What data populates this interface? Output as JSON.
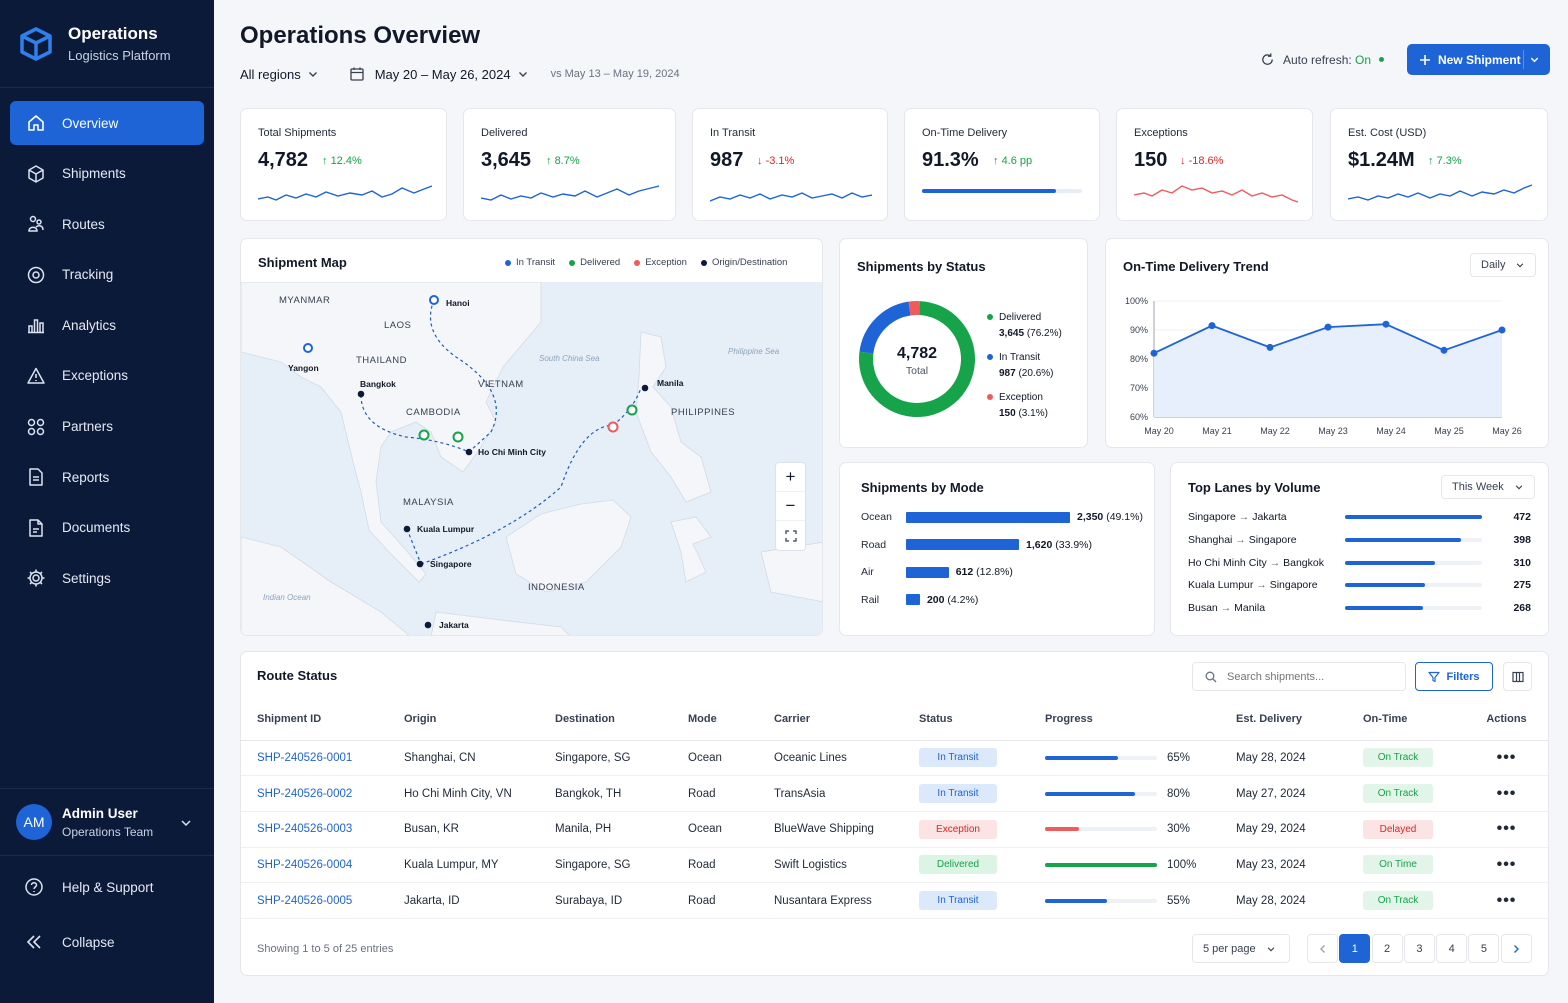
{
  "brand": {
    "title": "Operations",
    "subtitle": "Logistics Platform"
  },
  "nav": [
    {
      "label": "Overview",
      "icon": "home-icon",
      "active": true
    },
    {
      "label": "Shipments",
      "icon": "box-icon"
    },
    {
      "label": "Routes",
      "icon": "routes-icon"
    },
    {
      "label": "Tracking",
      "icon": "tracking-icon"
    },
    {
      "label": "Analytics",
      "icon": "analytics-icon"
    },
    {
      "label": "Exceptions",
      "icon": "warning-icon"
    },
    {
      "label": "Partners",
      "icon": "partners-icon"
    },
    {
      "label": "Reports",
      "icon": "report-icon"
    },
    {
      "label": "Documents",
      "icon": "document-icon"
    },
    {
      "label": "Settings",
      "icon": "gear-icon"
    }
  ],
  "user": {
    "initials": "AM",
    "name": "Admin User",
    "role": "Operations Team"
  },
  "bottom": {
    "help": "Help & Support",
    "collapse": "Collapse"
  },
  "header": {
    "title": "Operations Overview",
    "region": "All regions",
    "date_range": "May 20 – May 26, 2024",
    "compare": "vs May 13 – May 19, 2024",
    "auto_refresh_label": "Auto refresh:",
    "auto_refresh_value": "On",
    "new_button": "New Shipment"
  },
  "kpis": [
    {
      "label": "Total Shipments",
      "value": "4,782",
      "delta": "12.4%",
      "dir": "up"
    },
    {
      "label": "Delivered",
      "value": "3,645",
      "delta": "8.7%",
      "dir": "up"
    },
    {
      "label": "In Transit",
      "value": "987",
      "delta": "-3.1%",
      "dir": "down"
    },
    {
      "label": "On-Time Delivery",
      "value": "91.3%",
      "delta": "4.6 pp",
      "dir": "up",
      "progress": 0.913
    },
    {
      "label": "Exceptions",
      "value": "150",
      "delta": "-18.6%",
      "dir": "down"
    },
    {
      "label": "Est. Cost (USD)",
      "value": "$1.24M",
      "delta": "7.3%",
      "dir": "up"
    }
  ],
  "map": {
    "title": "Shipment Map",
    "legend": [
      "In Transit",
      "Delivered",
      "Exception",
      "Origin/Destination"
    ],
    "labels": {
      "myanmar": "MYANMAR",
      "laos": "LAOS",
      "thailand": "THAILAND",
      "vietnam": "VIETNAM",
      "cambodia": "CAMBODIA",
      "philippines": "PHILIPPINES",
      "malaysia": "MALAYSIA",
      "indonesia": "INDONESIA",
      "scs": "South China Sea",
      "psea": "Philippine Sea",
      "indian": "Indian Ocean",
      "hanoi": "Hanoi",
      "yangon": "Yangon",
      "bangkok": "Bangkok",
      "hcmc": "Ho Chi Minh City",
      "manila": "Manila",
      "kl": "Kuala Lumpur",
      "singapore": "Singapore",
      "jakarta": "Jakarta"
    },
    "zoom_in": "+",
    "zoom_out": "−"
  },
  "status_chart": {
    "title": "Shipments by Status",
    "total": "4,782",
    "total_label": "Total",
    "items": [
      {
        "label": "Delivered",
        "value": "3,645",
        "pct": "(76.2%)",
        "color": "#16a34a"
      },
      {
        "label": "In Transit",
        "value": "987",
        "pct": "(20.6%)",
        "color": "#1e64d6"
      },
      {
        "label": "Exception",
        "value": "150",
        "pct": "(3.1%)",
        "color": "#ef5b5b"
      }
    ]
  },
  "trend": {
    "title": "On-Time Delivery Trend",
    "period": "Daily"
  },
  "mode_chart": {
    "title": "Shipments by Mode",
    "items": [
      {
        "label": "Ocean",
        "value": "2,350",
        "pct": "(49.1%)"
      },
      {
        "label": "Road",
        "value": "1,620",
        "pct": "(33.9%)"
      },
      {
        "label": "Air",
        "value": "612",
        "pct": "(12.8%)"
      },
      {
        "label": "Rail",
        "value": "200",
        "pct": "(4.2%)"
      }
    ]
  },
  "lanes": {
    "title": "Top Lanes by Volume",
    "period": "This Week",
    "items": [
      {
        "from": "Singapore",
        "to": "Jakarta",
        "value": "472"
      },
      {
        "from": "Shanghai",
        "to": "Singapore",
        "value": "398"
      },
      {
        "from": "Ho Chi Minh City",
        "to": "Bangkok",
        "value": "310"
      },
      {
        "from": "Kuala Lumpur",
        "to": "Singapore",
        "value": "275"
      },
      {
        "from": "Busan",
        "to": "Manila",
        "value": "268"
      }
    ]
  },
  "chart_data": [
    {
      "type": "pie",
      "title": "Shipments by Status",
      "categories": [
        "Delivered",
        "In Transit",
        "Exception"
      ],
      "values": [
        3645,
        987,
        150
      ]
    },
    {
      "type": "line",
      "title": "On-Time Delivery Trend",
      "x": [
        "May 20",
        "May 21",
        "May 22",
        "May 23",
        "May 24",
        "May 25",
        "May 26"
      ],
      "series": [
        {
          "values": [
            82,
            91.5,
            84,
            91,
            92,
            83,
            90
          ]
        }
      ],
      "ylim": [
        60,
        100
      ],
      "yticks": [
        "60%",
        "70%",
        "80%",
        "90%",
        "100%"
      ]
    },
    {
      "type": "bar",
      "title": "Shipments by Mode",
      "categories": [
        "Ocean",
        "Road",
        "Air",
        "Rail"
      ],
      "values": [
        2350,
        1620,
        612,
        200
      ]
    },
    {
      "type": "bar",
      "title": "Top Lanes by Volume",
      "categories": [
        "Singapore → Jakarta",
        "Shanghai → Singapore",
        "Ho Chi Minh City → Bangkok",
        "Kuala Lumpur → Singapore",
        "Busan → Manila"
      ],
      "values": [
        472,
        398,
        310,
        275,
        268
      ]
    }
  ],
  "route_status": {
    "title": "Route Status",
    "search_placeholder": "Search shipments...",
    "filters_label": "Filters",
    "columns": [
      "Shipment ID",
      "Origin",
      "Destination",
      "Mode",
      "Carrier",
      "Status",
      "Progress",
      "Est. Delivery",
      "On-Time",
      "Actions"
    ],
    "rows": [
      {
        "id": "SHP-240526-0001",
        "origin": "Shanghai, CN",
        "dest": "Singapore, SG",
        "mode": "Ocean",
        "carrier": "Oceanic Lines",
        "status": "In Transit",
        "progress": 65,
        "progress_text": "65%",
        "eta": "May 28, 2024",
        "ontime": "On Track"
      },
      {
        "id": "SHP-240526-0002",
        "origin": "Ho Chi Minh City, VN",
        "dest": "Bangkok, TH",
        "mode": "Road",
        "carrier": "TransAsia",
        "status": "In Transit",
        "progress": 80,
        "progress_text": "80%",
        "eta": "May 27, 2024",
        "ontime": "On Track"
      },
      {
        "id": "SHP-240526-0003",
        "origin": "Busan, KR",
        "dest": "Manila, PH",
        "mode": "Ocean",
        "carrier": "BlueWave Shipping",
        "status": "Exception",
        "progress": 30,
        "progress_text": "30%",
        "eta": "May 29, 2024",
        "ontime": "Delayed"
      },
      {
        "id": "SHP-240526-0004",
        "origin": "Kuala Lumpur, MY",
        "dest": "Singapore, SG",
        "mode": "Road",
        "carrier": "Swift Logistics",
        "status": "Delivered",
        "progress": 100,
        "progress_text": "100%",
        "eta": "May 23, 2024",
        "ontime": "On Time"
      },
      {
        "id": "SHP-240526-0005",
        "origin": "Jakarta, ID",
        "dest": "Surabaya, ID",
        "mode": "Road",
        "carrier": "Nusantara Express",
        "status": "In Transit",
        "progress": 55,
        "progress_text": "55%",
        "eta": "May 28, 2024",
        "ontime": "On Track"
      }
    ],
    "footer": "Showing 1 to 5 of 25 entries",
    "per_page": "5 per page",
    "pages": [
      "1",
      "2",
      "3",
      "4",
      "5"
    ]
  }
}
